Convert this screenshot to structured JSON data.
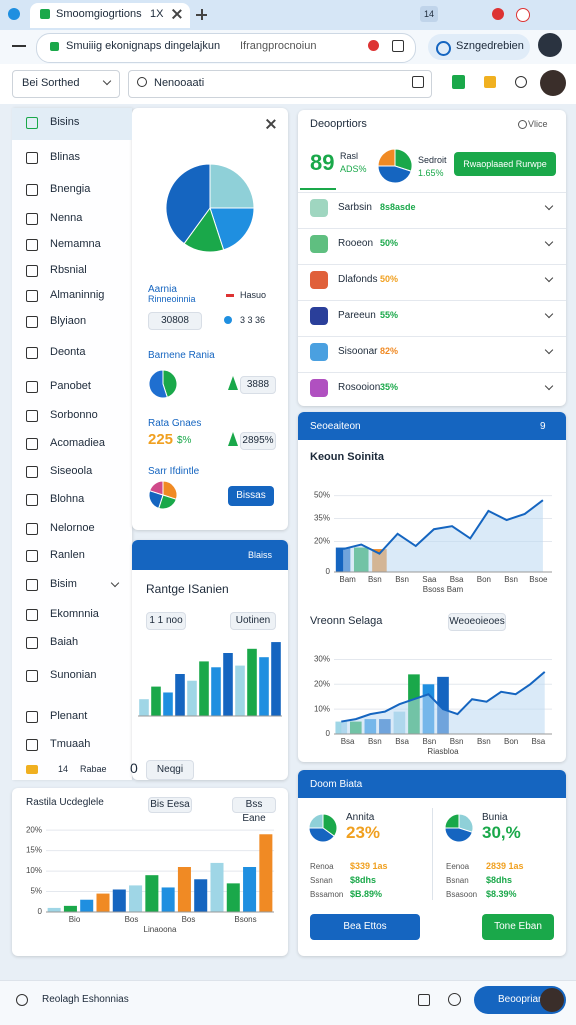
{
  "browser": {
    "tab_title": "Smoomgiogrtions",
    "tab_count": "1X",
    "badge": "14",
    "url": "Smuiiig ekonignaps dingelajkun",
    "url_extra": "Ifrangprocnoiun",
    "profile": "Szngedrebien"
  },
  "header": {
    "select": "Bei Sorthed",
    "search": "Nenooaati"
  },
  "sidebar": {
    "items": [
      "Bisins",
      "Blinas",
      "Bnengia",
      "Nenna",
      "Nemamna",
      "Rbsnial",
      "Almaninnig",
      "Blyiaon",
      "Deonta",
      "Panobet",
      "Sorbonno",
      "Acomadiea",
      "Siseoola",
      "Blohna",
      "Nelornoe",
      "Ranlen",
      "Bisim",
      "Ekomnnia",
      "Baiah",
      "Sunonian",
      "Plenant",
      "Tmuaah"
    ],
    "footer_count": "14",
    "footer_label": "Rabae"
  },
  "overview": {
    "pie": {
      "values": [
        25,
        20,
        15,
        40
      ],
      "colors": [
        "#8fd0d8",
        "#1f8fe0",
        "#1aa84a",
        "#1565c0"
      ]
    },
    "metric_title": "Aarnia",
    "metric_sub": "Rinneoinnia",
    "metric_right": "Hasuo",
    "chip": "30808",
    "chip_right": "3 3 36",
    "section1_title": "Barnene Rania",
    "section1_value": "3888",
    "section1_pie": {
      "values": [
        45,
        55
      ],
      "colors": [
        "#1aa84a",
        "#1f6fd0"
      ]
    },
    "section2_title": "Rata Gnaes",
    "section2_value": "225",
    "section2_unit": "$%",
    "section2_chip": "2895%",
    "section3_title": "Sarr Ifdintle",
    "section3_button": "Bissas",
    "section3_pie": {
      "values": [
        30,
        25,
        25,
        20
      ],
      "colors": [
        "#f08a24",
        "#1aa84a",
        "#1565c0",
        "#d04a8a"
      ]
    }
  },
  "trends": {
    "header": "Blaiss",
    "title": "Rantge ISanien",
    "button1": "1 1 noo",
    "button2": "Uotinen",
    "ylim": [
      0,
      100
    ],
    "bars": [
      20,
      35,
      28,
      50,
      42,
      65,
      58,
      75,
      60,
      80,
      70,
      88
    ],
    "colors": [
      "#9fd6e6",
      "#1aa84a",
      "#1f8fe0",
      "#1565c0"
    ],
    "row_value": "0",
    "row_button": "Neqgi"
  },
  "history": {
    "title": "Rastila Ucdeglele",
    "button1": "Bis Eesa",
    "button2": "Bss Eane",
    "ylim": [
      0,
      22
    ],
    "yticks": [
      0,
      {
        "value": 5,
        "label": "5%"
      },
      {
        "value": 10,
        "label": "10%"
      },
      {
        "value": 15,
        "label": "15%"
      },
      {
        "value": 20,
        "label": "20%"
      }
    ],
    "bars": [
      1,
      1.5,
      3,
      4.5,
      5.5,
      6.5,
      9,
      6,
      11,
      8,
      12,
      7,
      11,
      19
    ],
    "colors": [
      "#9fd6e6",
      "#1aa84a",
      "#1f8fe0",
      "#f08a24",
      "#1565c0"
    ],
    "x_labels": [
      "Bio",
      "Bos",
      "Bos",
      "Bsons"
    ],
    "xlabel": "Linaoona"
  },
  "deals": {
    "title": "Deooprtiors",
    "filter": "Vlice",
    "big": "89",
    "big_label": "Rasl",
    "big_pct": "ADS%",
    "pie": {
      "values": [
        30,
        45,
        25
      ],
      "colors": [
        "#1aa84a",
        "#1565c0",
        "#f08a24"
      ]
    },
    "side_label": "Sedroit",
    "side_pct": "1.65%",
    "button": "Rwaoplaaed Rurwpe",
    "rows": [
      {
        "name": "Sarbsin",
        "pct": "8s8asde",
        "color": "#1aa84a",
        "icon": "#9fd6c0"
      },
      {
        "name": "Rooeon",
        "pct": "50%",
        "color": "#1aa84a",
        "icon": "#5fbf80"
      },
      {
        "name": "Dlafonds",
        "pct": "50%",
        "color": "#f0a020",
        "icon": "#e0603a"
      },
      {
        "name": "Pareeun",
        "pct": "55%",
        "color": "#1aa84a",
        "icon": "#2a3f9a"
      },
      {
        "name": "Sisoonar",
        "pct": "82%",
        "color": "#f08a24",
        "icon": "#4aa0e0"
      },
      {
        "name": "Rosooion",
        "pct": "35%",
        "color": "#1aa84a",
        "icon": "#b050c0"
      }
    ]
  },
  "stats": {
    "header": "Seoeaiteon",
    "header_num": "9",
    "chart1": {
      "title": "Keoun Soinita",
      "ylim": [
        0,
        55
      ],
      "yticks": [
        0,
        {
          "value": 20,
          "label": "20%"
        },
        {
          "value": 35,
          "label": "35%"
        },
        {
          "value": 50,
          "label": "50%"
        }
      ],
      "line": [
        15,
        18,
        12,
        25,
        17,
        28,
        30,
        22,
        40,
        34,
        38,
        47
      ],
      "bars": [
        16,
        16,
        15
      ],
      "bar_colors": [
        "#1565c0",
        "#1aa84a",
        "#f08a24"
      ],
      "x_labels": [
        "Bam",
        "Bsn",
        "Bsn",
        "Saa",
        "Bsa",
        "Bon",
        "Bsn",
        "Bsoe"
      ],
      "xlabel": "Bsoss Bam"
    },
    "chart2": {
      "title": "Vreonn Selaga",
      "button": "Weoeoieoes",
      "ylim": [
        0,
        33
      ],
      "yticks": [
        0,
        {
          "value": 10,
          "label": "10%"
        },
        {
          "value": 20,
          "label": "20%"
        },
        {
          "value": 30,
          "label": "30%"
        }
      ],
      "line": [
        5,
        6,
        8,
        9,
        12,
        14,
        16,
        10,
        8,
        14,
        13,
        17,
        16,
        20,
        25
      ],
      "bars": [
        5,
        5,
        6,
        6,
        9,
        24,
        20,
        23
      ],
      "bar_colors": [
        "#9fd6e6",
        "#1aa84a",
        "#1f8fe0",
        "#1565c0"
      ],
      "x_labels": [
        "Bsa",
        "Bsn",
        "Bsa",
        "Bsn",
        "Bsn",
        "Bsn",
        "Bon",
        "Bsa"
      ],
      "xlabel": "Riasbloa"
    }
  },
  "summary": {
    "header": "Doom Biata",
    "cols": [
      {
        "label": "Annita",
        "pct": "23%",
        "pie": {
          "values": [
            35,
            40,
            25
          ],
          "colors": [
            "#1aa84a",
            "#1565c0",
            "#8fd0d8"
          ]
        },
        "rows": [
          [
            "Renoa",
            "$339 1as"
          ],
          [
            "Ssnan",
            "$8dhs"
          ],
          [
            "Bssamon",
            "$B.89%"
          ]
        ],
        "button": "Bea Ettos"
      },
      {
        "label": "Bunia",
        "pct": "30,%",
        "pie": {
          "values": [
            30,
            45,
            25
          ],
          "colors": [
            "#8fd0d8",
            "#1565c0",
            "#1aa84a"
          ]
        },
        "rows": [
          [
            "Eenoa",
            "2839 1as"
          ],
          [
            "Bsnan",
            "$8dhs"
          ],
          [
            "Bsasoon",
            "$8.39%"
          ]
        ],
        "button": "Tone Eban"
      }
    ]
  },
  "footer": {
    "label": "Reolagh Eshonnias",
    "button": "Beoopriar"
  }
}
